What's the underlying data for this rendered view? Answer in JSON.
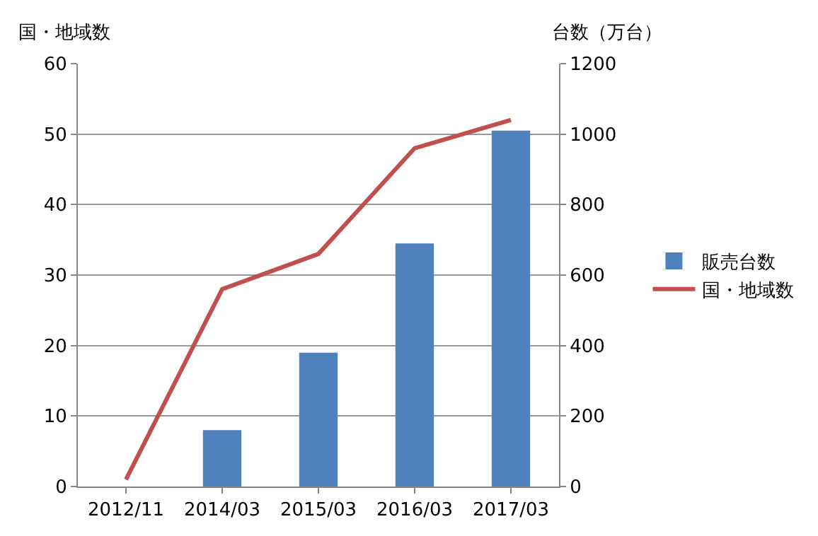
{
  "chart_data": {
    "type": "bar",
    "ylabel": "国・地域数",
    "y2label": "台数（万台）",
    "categories": [
      "2012/11",
      "2014/03",
      "2015/03",
      "2016/03",
      "2017/03"
    ],
    "series": [
      {
        "name": "販売台数",
        "axis": "y2",
        "color": "#4f81bd",
        "values": [
          null,
          160,
          380,
          690,
          1010
        ]
      },
      {
        "name": "国・地域数",
        "type": "line",
        "color": "#c0504d",
        "values": [
          1,
          28,
          33,
          48,
          52
        ]
      }
    ],
    "ylim": [
      0,
      60
    ],
    "yticks": [
      0,
      10,
      20,
      30,
      40,
      50,
      60
    ],
    "y2lim": [
      0,
      1200
    ],
    "y2ticks": [
      0,
      200,
      400,
      600,
      800,
      1000,
      1200
    ],
    "grid": "y",
    "legend": "right",
    "marker": "none",
    "line_style": "solid"
  }
}
